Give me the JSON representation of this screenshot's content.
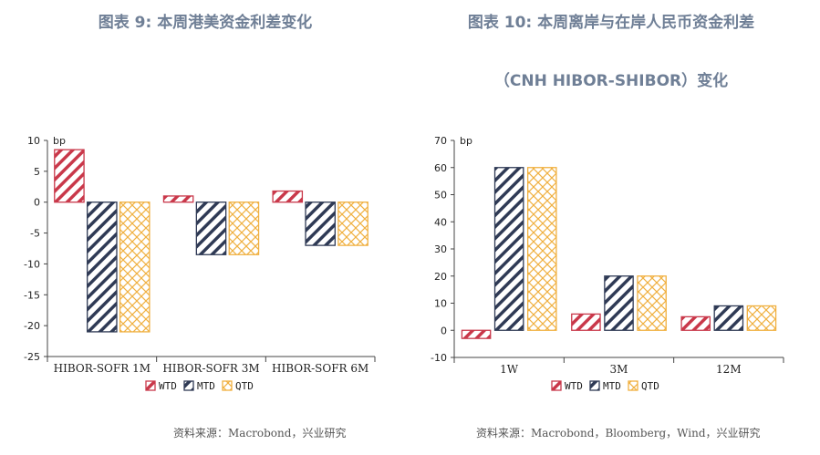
{
  "left_title": "图表 9:  本周港美资金利差变化",
  "right_title_line1": "图表 10: 本周离岸与在岸人民币资金利差",
  "right_title_line2": "（CNH HIBOR-SHIBOR）变化",
  "left_source": "资料来源：Macrobond，兴业研究",
  "right_source": "资料来源：Macrobond，Bloomberg，Wind，兴业研究",
  "legend": [
    {
      "label": "WTD",
      "color": "#c9384a",
      "pattern": "diag"
    },
    {
      "label": "MTD",
      "color": "#2f3a55",
      "pattern": "diag"
    },
    {
      "label": "QTD",
      "color": "#f0b040",
      "pattern": "cross"
    }
  ],
  "chart_data": [
    {
      "type": "bar",
      "ylabel": "bp",
      "ylim": [
        -25,
        10
      ],
      "yticks": [
        10,
        5,
        0,
        -5,
        -10,
        -15,
        -20,
        -25
      ],
      "categories": [
        "HIBOR-SOFR 1M",
        "HIBOR-SOFR 3M",
        "HIBOR-SOFR 6M"
      ],
      "series": [
        {
          "name": "WTD",
          "values": [
            8.5,
            1.0,
            1.8
          ]
        },
        {
          "name": "MTD",
          "values": [
            -21.0,
            -8.5,
            -7.0
          ]
        },
        {
          "name": "QTD",
          "values": [
            -21.0,
            -8.5,
            -7.0
          ]
        }
      ]
    },
    {
      "type": "bar",
      "ylabel": "bp",
      "ylim": [
        -10,
        70
      ],
      "yticks": [
        70,
        60,
        50,
        40,
        30,
        20,
        10,
        0,
        -10
      ],
      "categories": [
        "1W",
        "3M",
        "12M"
      ],
      "series": [
        {
          "name": "WTD",
          "values": [
            -3,
            6,
            5
          ]
        },
        {
          "name": "MTD",
          "values": [
            60,
            20,
            9
          ]
        },
        {
          "name": "QTD",
          "values": [
            60,
            20,
            9
          ]
        }
      ]
    }
  ]
}
